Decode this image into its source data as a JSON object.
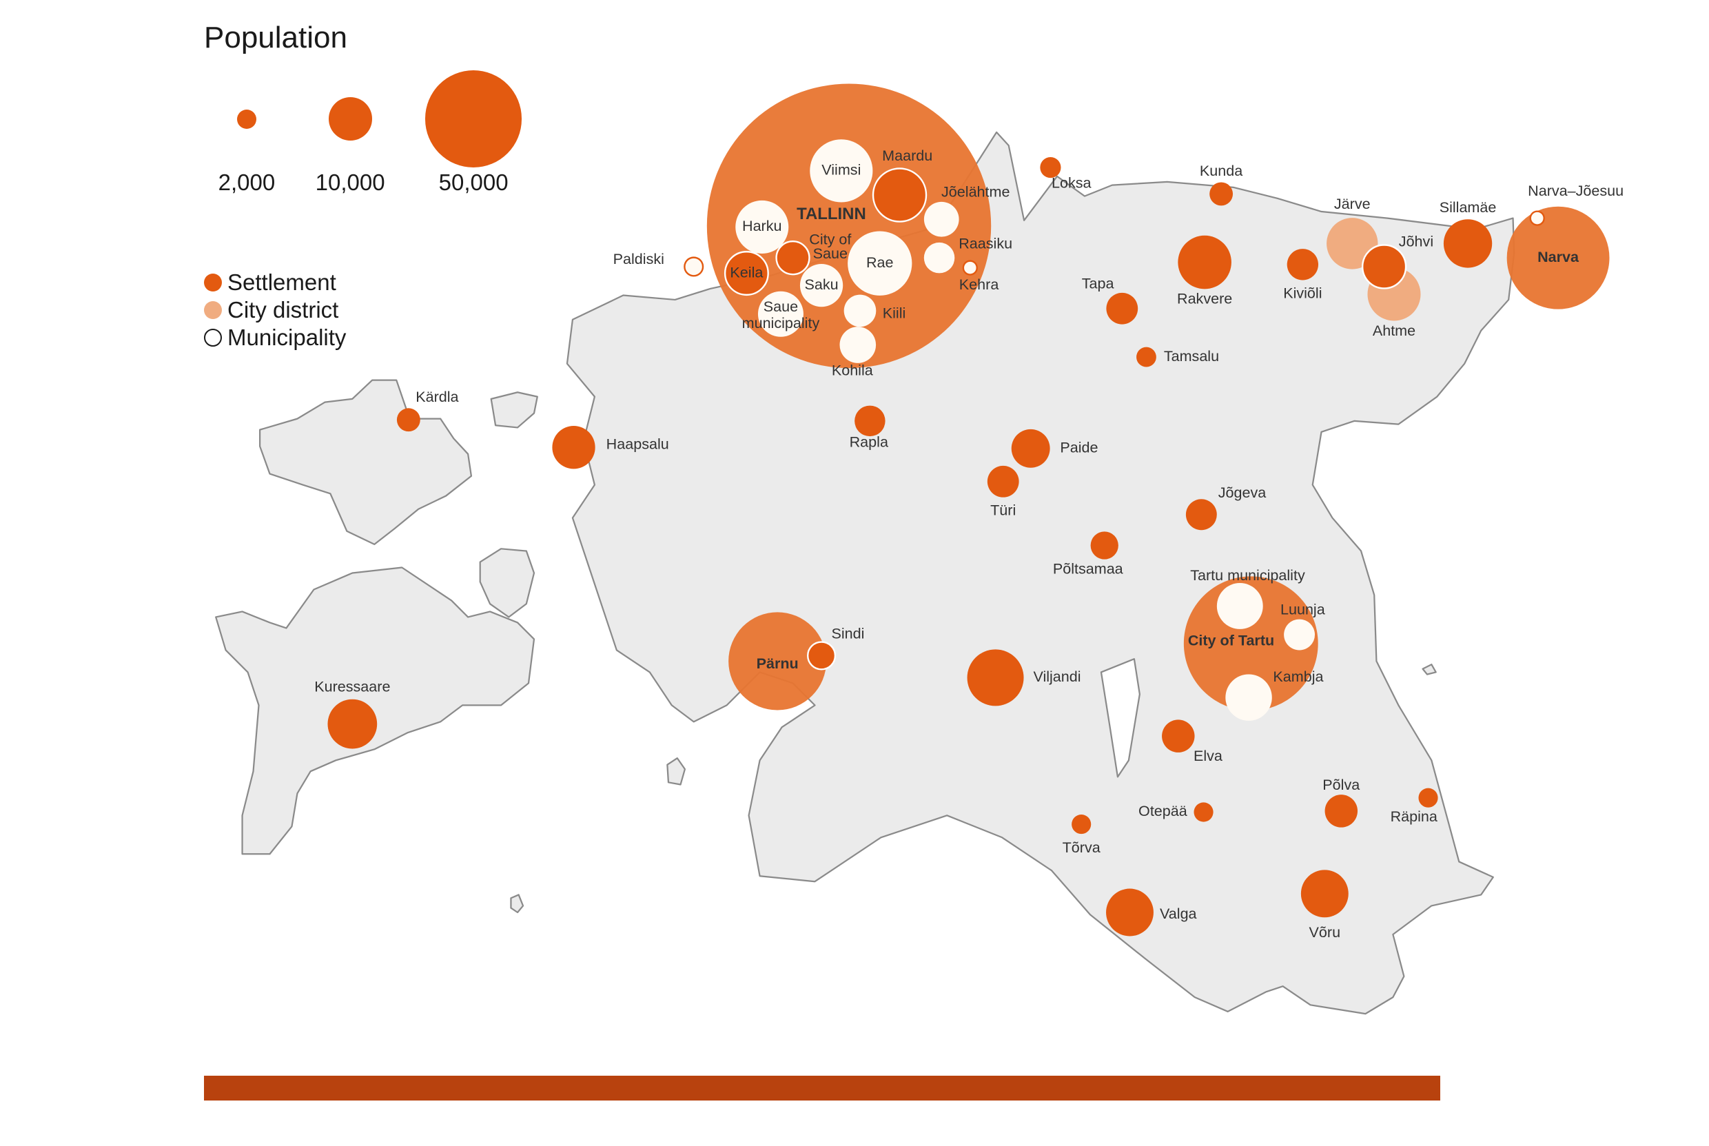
{
  "legend": {
    "title": "Population",
    "sizes": [
      {
        "value": 2000,
        "label": "2,000"
      },
      {
        "value": 10000,
        "label": "10,000"
      },
      {
        "value": 50000,
        "label": "50,000"
      }
    ],
    "types": [
      {
        "key": "settlement",
        "label": "Settlement",
        "color": "#e35a10"
      },
      {
        "key": "district",
        "label": "City district",
        "color": "#f0ac80"
      },
      {
        "key": "municipality",
        "label": "Municipality",
        "color": "#ffffff"
      }
    ]
  },
  "colors": {
    "settlement": "#e35a10",
    "big_city": "#e87530",
    "district": "#f0ac80",
    "municipality": "#fffaf3",
    "land": "#ebebeb",
    "coast": "#8a8a8a",
    "bar": "#b8420e"
  },
  "places": [
    {
      "name": "TALLINN",
      "type": "big_city",
      "population": 430000
    },
    {
      "name": "Viimsi",
      "type": "municipality",
      "population": 21000
    },
    {
      "name": "Maardu",
      "type": "settlement",
      "population": 15000
    },
    {
      "name": "Jõelähtme",
      "type": "municipality",
      "population": 6500
    },
    {
      "name": "Harku",
      "type": "municipality",
      "population": 15000
    },
    {
      "name": "City of Saue",
      "type": "settlement",
      "population": 5800
    },
    {
      "name": "Keila",
      "type": "settlement",
      "population": 9900
    },
    {
      "name": "Rae",
      "type": "municipality",
      "population": 22000
    },
    {
      "name": "Raasiku",
      "type": "municipality",
      "population": 5000
    },
    {
      "name": "Kehra",
      "type": "municipality",
      "population": 1000
    },
    {
      "name": "Saku",
      "type": "municipality",
      "population": 9800
    },
    {
      "name": "Saue municipality",
      "type": "municipality",
      "population": 11000
    },
    {
      "name": "Kiili",
      "type": "municipality",
      "population": 5500
    },
    {
      "name": "Kohila",
      "type": "municipality",
      "population": 7000
    },
    {
      "name": "Paldiski",
      "type": "municipality",
      "population": 1800
    },
    {
      "name": "Loksa",
      "type": "settlement",
      "population": 2300
    },
    {
      "name": "Kunda",
      "type": "settlement",
      "population": 2900
    },
    {
      "name": "Rakvere",
      "type": "settlement",
      "population": 15200
    },
    {
      "name": "Tapa",
      "type": "settlement",
      "population": 5300
    },
    {
      "name": "Tamsalu",
      "type": "settlement",
      "population": 2100
    },
    {
      "name": "Kiviõli",
      "type": "settlement",
      "population": 5200
    },
    {
      "name": "Järve",
      "type": "district",
      "population": 14000
    },
    {
      "name": "Ahtme",
      "type": "district",
      "population": 15000
    },
    {
      "name": "Jõhvi",
      "type": "settlement",
      "population": 10000
    },
    {
      "name": "Sillamäe",
      "type": "settlement",
      "population": 12500
    },
    {
      "name": "Narva–Jõesuu",
      "type": "municipality",
      "population": 1000
    },
    {
      "name": "Narva",
      "type": "big_city",
      "population": 56000
    },
    {
      "name": "Kärdla",
      "type": "settlement",
      "population": 2900
    },
    {
      "name": "Haapsalu",
      "type": "settlement",
      "population": 9800
    },
    {
      "name": "Rapla",
      "type": "settlement",
      "population": 5000
    },
    {
      "name": "Paide",
      "type": "settlement",
      "population": 7900
    },
    {
      "name": "Türi",
      "type": "settlement",
      "population": 5300
    },
    {
      "name": "Jõgeva",
      "type": "settlement",
      "population": 5100
    },
    {
      "name": "Põltsamaa",
      "type": "settlement",
      "population": 4100
    },
    {
      "name": "Tartu municipality",
      "type": "municipality",
      "population": 11300
    },
    {
      "name": "Luunja",
      "type": "municipality",
      "population": 5100
    },
    {
      "name": "City of Tartu",
      "type": "big_city",
      "population": 96000
    },
    {
      "name": "Kambja",
      "type": "municipality",
      "population": 11500
    },
    {
      "name": "Pärnu",
      "type": "big_city",
      "population": 51000
    },
    {
      "name": "Sindi",
      "type": "settlement",
      "population": 4000
    },
    {
      "name": "Viljandi",
      "type": "settlement",
      "population": 17000
    },
    {
      "name": "Kuressaare",
      "type": "settlement",
      "population": 13000
    },
    {
      "name": "Elva",
      "type": "settlement",
      "population": 5700
    },
    {
      "name": "Otepää",
      "type": "settlement",
      "population": 2000
    },
    {
      "name": "Põlva",
      "type": "settlement",
      "population": 5700
    },
    {
      "name": "Räpina",
      "type": "settlement",
      "population": 2000
    },
    {
      "name": "Tõrva",
      "type": "settlement",
      "population": 2000
    },
    {
      "name": "Valga",
      "type": "settlement",
      "population": 12000
    },
    {
      "name": "Võru",
      "type": "settlement",
      "population": 12000
    }
  ]
}
